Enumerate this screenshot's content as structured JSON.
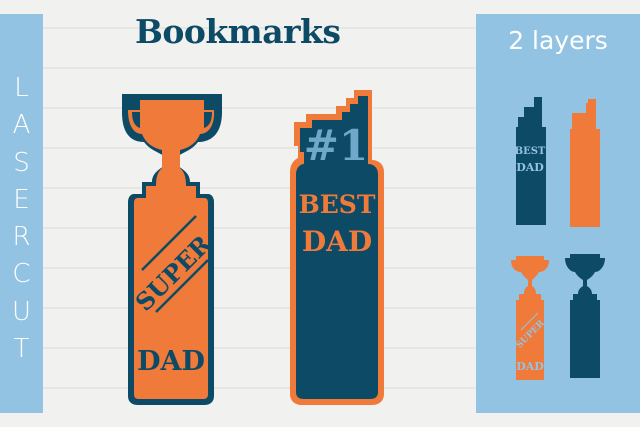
{
  "title": "Bookmarks",
  "left_panel": {
    "letters": [
      "L",
      "A",
      "S",
      "E",
      "R",
      " ",
      "C",
      "U",
      "T"
    ],
    "text": "LASER CUT"
  },
  "right_panel": {
    "title": "2 layers"
  },
  "bookmarks": {
    "trophy": {
      "line1": "SUPER",
      "line2": "DAD"
    },
    "number_one": {
      "number": "#1",
      "line1": "BEST",
      "line2": "DAD"
    }
  },
  "colors": {
    "navy": "#0d4a66",
    "orange": "#f07a3a",
    "panel_blue": "#93c3e3"
  }
}
